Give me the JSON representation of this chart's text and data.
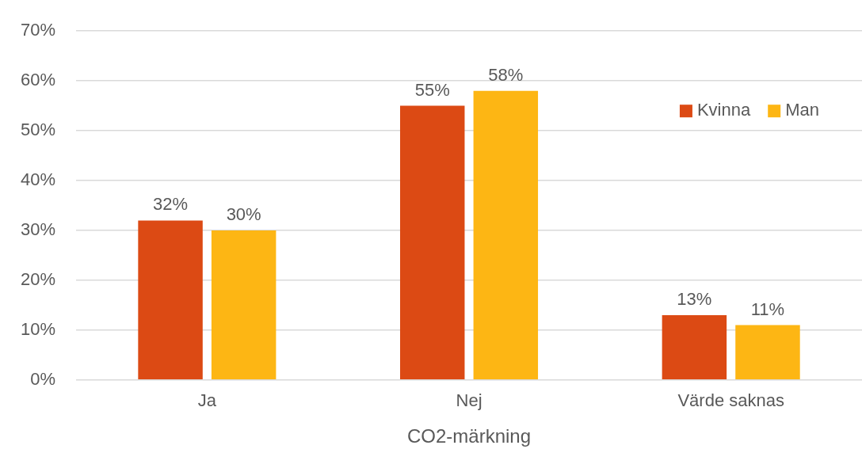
{
  "chart_data": {
    "type": "bar",
    "xlabel": "CO2-märkning",
    "categories": [
      "Ja",
      "Nej",
      "Värde saknas"
    ],
    "series": [
      {
        "name": "Kvinna",
        "color": "#dc4a14",
        "values": [
          32,
          55,
          13
        ],
        "value_labels": [
          "32%",
          "55%",
          "13%"
        ]
      },
      {
        "name": "Man",
        "color": "#fdb614",
        "values": [
          30,
          58,
          11
        ],
        "value_labels": [
          "30%",
          "58%",
          "11%"
        ]
      }
    ],
    "ylim": [
      0,
      70
    ],
    "yticks": [
      {
        "value": 0,
        "label": "0%"
      },
      {
        "value": 10,
        "label": "10%"
      },
      {
        "value": 20,
        "label": "20%"
      },
      {
        "value": 30,
        "label": "30%"
      },
      {
        "value": 40,
        "label": "40%"
      },
      {
        "value": 50,
        "label": "50%"
      },
      {
        "value": 60,
        "label": "60%"
      },
      {
        "value": 70,
        "label": "70%"
      }
    ],
    "grid": "y",
    "legend": "top right"
  }
}
